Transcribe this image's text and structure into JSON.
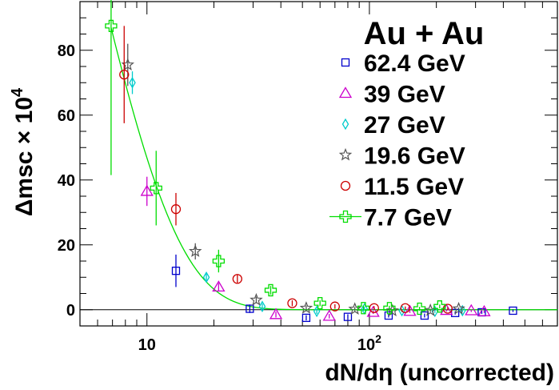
{
  "chart_data": {
    "type": "scatter",
    "title": "",
    "legend_title": "Au + Au",
    "xlabel": "dN/dη (uncorrected)",
    "ylabel": "Δmsc × 10",
    "ylabel_exponent": "4",
    "x_scale": "log",
    "xlim": [
      5,
      700
    ],
    "ylim": [
      -5,
      95
    ],
    "x_ticks": [
      {
        "value": 10,
        "label": "10"
      },
      {
        "value": 100,
        "label": "10",
        "exponent": "2"
      }
    ],
    "y_ticks": [
      0,
      20,
      40,
      60,
      80
    ],
    "zero_line": true,
    "grid": false,
    "legend_position": "top-right",
    "series": [
      {
        "name": "62.4 GeV",
        "marker": "square",
        "color": "#0000cc",
        "points": [
          {
            "x": 13.5,
            "y": 12.0,
            "err": 5.0
          },
          {
            "x": 29,
            "y": 0.3,
            "err": 1.3
          },
          {
            "x": 52,
            "y": -2.5,
            "err": 0.8
          },
          {
            "x": 80,
            "y": -2.2,
            "err": 0.8
          },
          {
            "x": 122,
            "y": -1.8,
            "err": 0.6
          },
          {
            "x": 177,
            "y": -1.8,
            "err": 0.6
          },
          {
            "x": 243,
            "y": -1.0,
            "err": 0.5
          },
          {
            "x": 320,
            "y": -0.8,
            "err": 0.5
          },
          {
            "x": 442,
            "y": -0.3,
            "err": 0.4
          }
        ]
      },
      {
        "name": "39 GeV",
        "marker": "triangle",
        "color": "#cc00cc",
        "points": [
          {
            "x": 10.0,
            "y": 36.5,
            "err": 4.5
          },
          {
            "x": 21,
            "y": 7.0,
            "err": 1.2
          },
          {
            "x": 38,
            "y": -1.5,
            "err": 0.9
          },
          {
            "x": 66,
            "y": -2.0,
            "err": 0.7
          },
          {
            "x": 104,
            "y": -0.8,
            "err": 0.5
          },
          {
            "x": 152,
            "y": -0.5,
            "err": 0.5
          },
          {
            "x": 222,
            "y": -0.2,
            "err": 0.4
          },
          {
            "x": 287,
            "y": -0.3,
            "err": 0.4
          },
          {
            "x": 328,
            "y": -0.6,
            "err": 0.4
          }
        ]
      },
      {
        "name": "27 GeV",
        "marker": "diamond",
        "color": "#00cccc",
        "points": [
          {
            "x": 8.6,
            "y": 70.0,
            "err": 3.5
          },
          {
            "x": 18.5,
            "y": 10.0,
            "err": 1.2
          },
          {
            "x": 33,
            "y": 1.0,
            "err": 0.9
          },
          {
            "x": 58,
            "y": -0.5,
            "err": 0.8
          },
          {
            "x": 95,
            "y": 0.3,
            "err": 0.6
          },
          {
            "x": 140,
            "y": -0.3,
            "err": 0.5
          },
          {
            "x": 197,
            "y": -0.5,
            "err": 0.5
          },
          {
            "x": 262,
            "y": -0.3,
            "err": 0.4
          }
        ]
      },
      {
        "name": "19.6 GeV",
        "marker": "star",
        "color": "#555555",
        "points": [
          {
            "x": 8.2,
            "y": 75.5,
            "err": 6.5
          },
          {
            "x": 16.5,
            "y": 18.0,
            "err": 2.5
          },
          {
            "x": 31,
            "y": 3.0,
            "err": 1.0
          },
          {
            "x": 52,
            "y": 0.5,
            "err": 0.8
          },
          {
            "x": 86,
            "y": 0.2,
            "err": 0.6
          },
          {
            "x": 127,
            "y": -0.3,
            "err": 0.5
          },
          {
            "x": 188,
            "y": -0.2,
            "err": 0.5
          },
          {
            "x": 252,
            "y": 0.3,
            "err": 0.4
          }
        ]
      },
      {
        "name": "11.5 GeV",
        "marker": "circle",
        "color": "#cc0000",
        "points": [
          {
            "x": 7.9,
            "y": 72.5,
            "err": 15.0
          },
          {
            "x": 13.5,
            "y": 31.0,
            "err": 5.0
          },
          {
            "x": 25.5,
            "y": 9.5,
            "err": 1.2
          },
          {
            "x": 45,
            "y": 2.0,
            "err": 0.9
          },
          {
            "x": 70,
            "y": 1.0,
            "err": 0.7
          },
          {
            "x": 105,
            "y": 0.5,
            "err": 0.6
          },
          {
            "x": 145,
            "y": 0.5,
            "err": 0.5
          },
          {
            "x": 225,
            "y": 0.3,
            "err": 0.5
          }
        ]
      },
      {
        "name": "7.7 GeV",
        "marker": "cross",
        "color": "#00dd00",
        "points": [
          {
            "x": 6.9,
            "y": 87.5,
            "err": 46.0
          },
          {
            "x": 11.0,
            "y": 37.5,
            "err": 11.5
          },
          {
            "x": 21,
            "y": 15.0,
            "err": 3.5
          },
          {
            "x": 36,
            "y": 6.0,
            "err": 1.3
          },
          {
            "x": 60,
            "y": 2.0,
            "err": 0.9
          },
          {
            "x": 94,
            "y": 0.5,
            "err": 0.8
          },
          {
            "x": 123,
            "y": 0.5,
            "err": 0.7
          },
          {
            "x": 168,
            "y": 0.3,
            "err": 0.6
          },
          {
            "x": 207,
            "y": 1.0,
            "err": 0.6
          }
        ],
        "fit": {
          "amplitude": 87.0,
          "decay": 5.0,
          "x0": 6.9
        }
      }
    ]
  }
}
